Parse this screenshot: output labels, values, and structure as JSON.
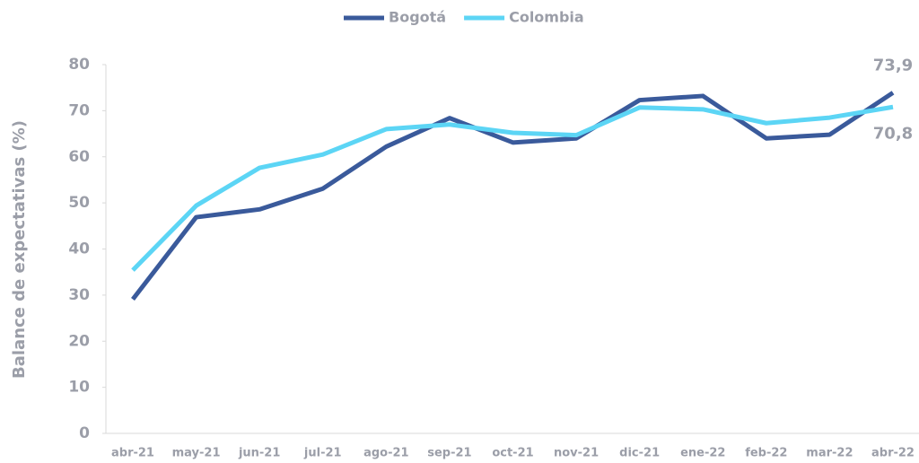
{
  "chart_data": {
    "type": "line",
    "y_label": "Balance de expectativas (%)",
    "categories": [
      "abr-21",
      "may-21",
      "jun-21",
      "jul-21",
      "ago-21",
      "sep-21",
      "oct-21",
      "nov-21",
      "dic-21",
      "ene-22",
      "feb-22",
      "mar-22",
      "abr-22"
    ],
    "series": [
      {
        "name": "Bogotá",
        "color": "#3a5a9b",
        "values": [
          29.1,
          46.9,
          48.6,
          53.1,
          62.2,
          68.4,
          63.1,
          64.0,
          72.3,
          73.2,
          64.0,
          64.8,
          73.9
        ],
        "value_labels": [
          null,
          null,
          null,
          null,
          null,
          null,
          null,
          null,
          null,
          null,
          null,
          null,
          "73,9"
        ]
      },
      {
        "name": "Colombia",
        "color": "#5cd5f5",
        "values": [
          35.4,
          49.4,
          57.6,
          60.5,
          66.0,
          67.0,
          65.2,
          64.7,
          70.7,
          70.3,
          67.3,
          68.5,
          70.8
        ],
        "value_labels": [
          null,
          null,
          null,
          null,
          null,
          null,
          null,
          null,
          null,
          null,
          null,
          null,
          "70,8"
        ]
      }
    ],
    "ylim": [
      0,
      80
    ],
    "yticks": [
      0,
      10,
      20,
      30,
      40,
      50,
      60,
      70,
      80
    ],
    "grid": false
  }
}
